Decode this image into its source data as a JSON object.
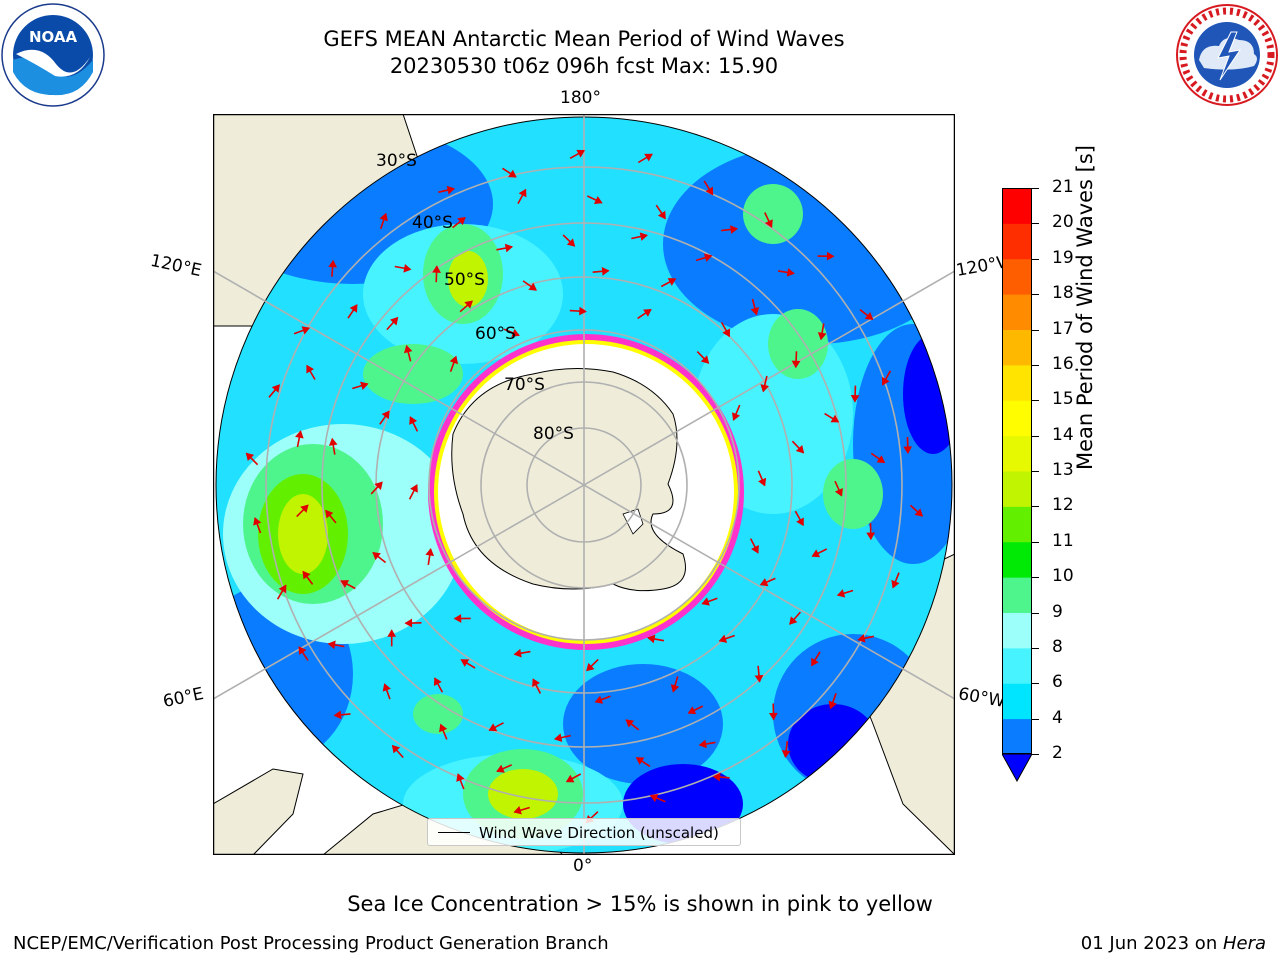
{
  "header": {
    "title_line1": "GEFS MEAN Antarctic Mean Period of Wind Waves",
    "title_line2": "20230530 t06z 096h fcst   Max: 15.90"
  },
  "logos": {
    "left": "noaa-logo",
    "right": "nws-logo"
  },
  "map": {
    "projection": "south polar stereographic",
    "longitude_labels": {
      "top": "180°",
      "bottom": "0°",
      "upper_left": "120°E",
      "lower_left": "60°E",
      "upper_right": "120°W",
      "lower_right": "60°W"
    },
    "latitude_labels": [
      "30°S",
      "40°S",
      "50°S",
      "60°S",
      "70°S",
      "80°S"
    ],
    "land_color": "#efedda",
    "sea_ice_color": "#ff33cc",
    "legend_label": "Wind Wave Direction (unscaled)"
  },
  "colorbar": {
    "label": "Mean Period of Wind Waves [s]",
    "ticks": [
      "2",
      "4",
      "6",
      "8",
      "9",
      "10",
      "11",
      "12",
      "13",
      "14",
      "15",
      "16",
      "17",
      "18",
      "19",
      "20",
      "21"
    ],
    "colors": [
      "#0a7cff",
      "#00e5ff",
      "#47f3ff",
      "#9dfff9",
      "#4ef58d",
      "#00ea06",
      "#62f000",
      "#c0f400",
      "#e6f900",
      "#fffd00",
      "#ffe400",
      "#ffb800",
      "#ff8c00",
      "#ff5e00",
      "#ff2e00",
      "#ff0000"
    ],
    "under_color": "#0000ff"
  },
  "caption": "Sea Ice Concentration > 15% is shown in pink to yellow",
  "footer": {
    "left": "NCEP/EMC/Verification Post Processing Product Generation Branch",
    "right_prefix": "01 Jun 2023 on ",
    "right_host": "Hera"
  }
}
